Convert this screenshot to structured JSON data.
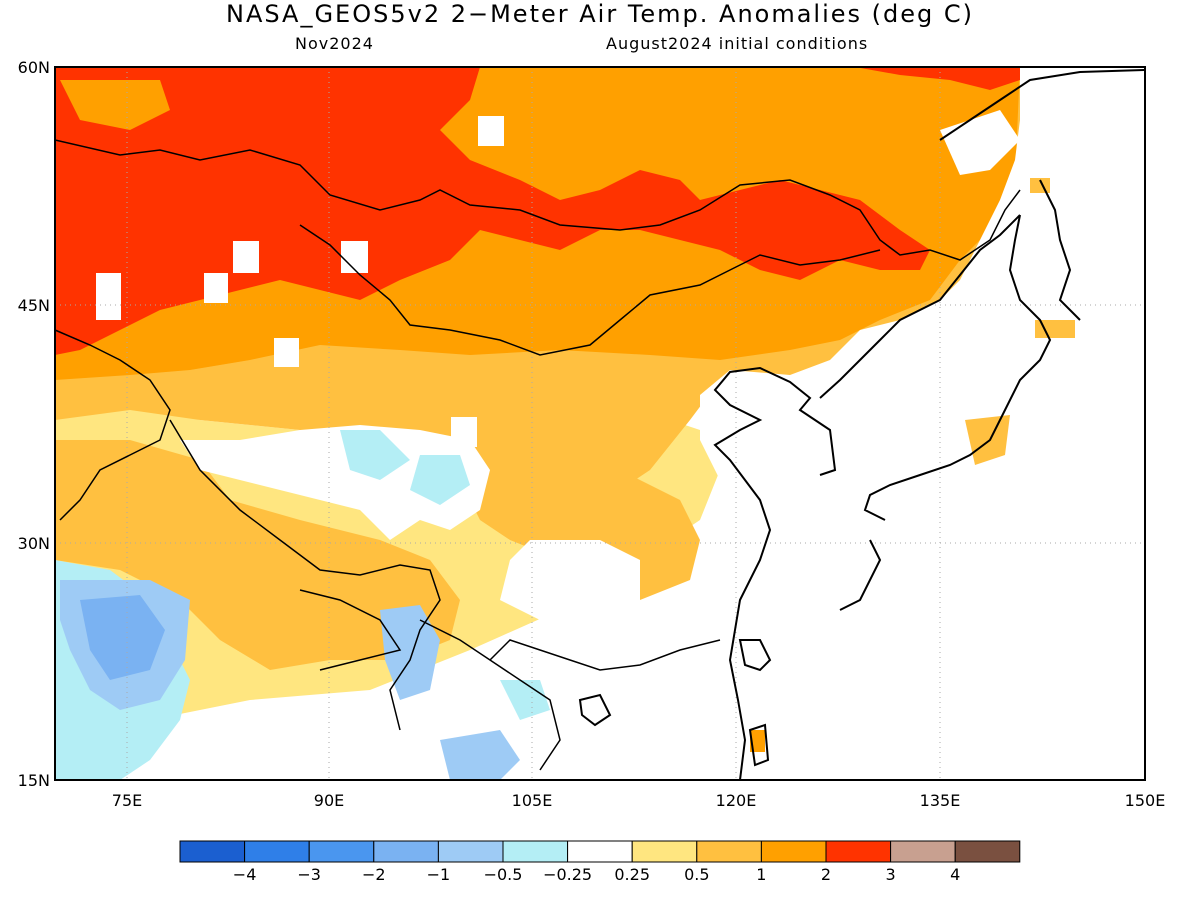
{
  "header": {
    "title": "NASA_GEOS5v2 2−Meter Air Temp. Anomalies (deg C)",
    "valid_month": "Nov2024",
    "init": "August2024 initial conditions"
  },
  "map": {
    "region": "East Asia",
    "lat_labels": [
      "60N",
      "45N",
      "30N",
      "15N"
    ],
    "lon_labels": [
      "75E",
      "90E",
      "105E",
      "120E",
      "135E",
      "150E"
    ],
    "grid": true
  },
  "legend": {
    "colors": [
      "#1b5fd0",
      "#2f7fe8",
      "#4a96ef",
      "#7ab2f2",
      "#9ecbf5",
      "#b4eef5",
      "#ffffff",
      "#ffe680",
      "#ffc040",
      "#ffa000",
      "#ff3300",
      "#c8a090",
      "#7a5040"
    ],
    "labels": [
      "−4",
      "−3",
      "−2",
      "−1",
      "−0.5",
      "−0.25",
      "0.25",
      "0.5",
      "1",
      "2",
      "3",
      "4"
    ]
  }
}
